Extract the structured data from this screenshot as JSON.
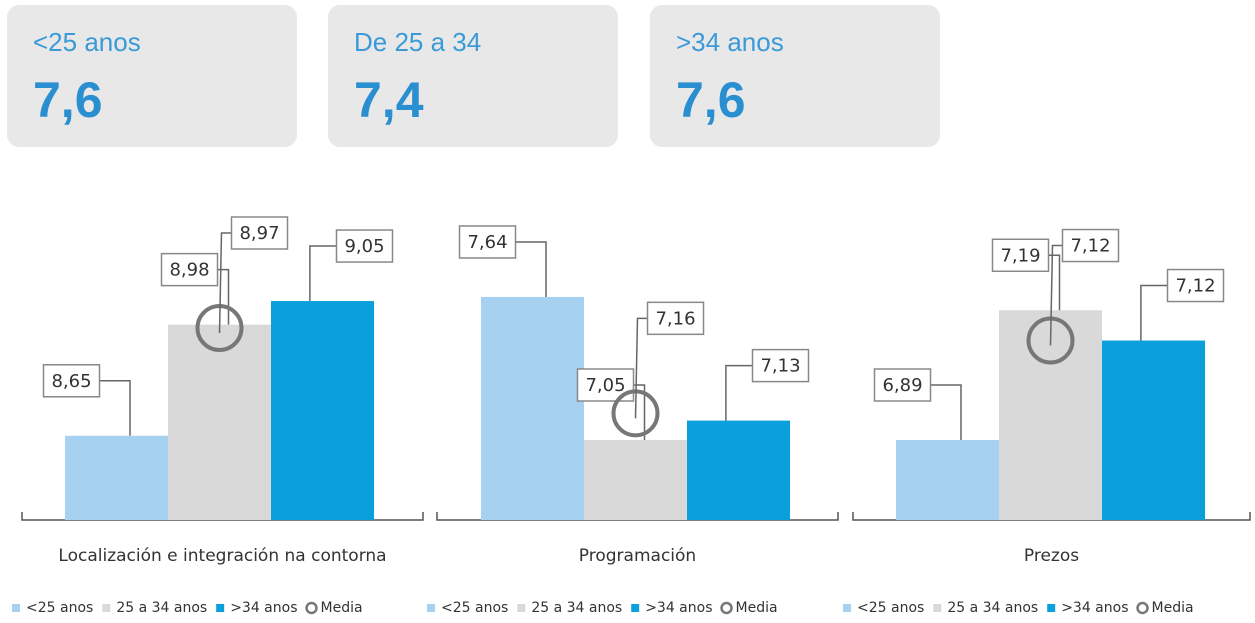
{
  "cards": [
    {
      "label": "<25 anos",
      "value": "7,6"
    },
    {
      "label": "De 25 a 34",
      "value": "7,4"
    },
    {
      "label": ">34 anos",
      "value": "7,6"
    }
  ],
  "chart_data": [
    {
      "type": "bar",
      "categories": [
        "Localización e integración na contorna"
      ],
      "ylim": [
        8.4,
        9.35
      ],
      "series": [
        {
          "name": "<25 anos",
          "color": "#a6d1f0",
          "values": [
            8.65
          ],
          "value_labels": [
            "8,65"
          ]
        },
        {
          "name": "25 a 34 anos",
          "color": "#d9d9d9",
          "values": [
            8.98
          ],
          "value_labels": [
            "8,98"
          ]
        },
        {
          "name": ">34 anos",
          "color": "#0aa0dc",
          "values": [
            9.05
          ],
          "value_labels": [
            "9,05"
          ]
        },
        {
          "name": "Media",
          "color": "#777777",
          "marker": "circle",
          "values": [
            8.97
          ],
          "value_labels": [
            "8,97"
          ]
        }
      ]
    },
    {
      "type": "bar",
      "categories": [
        "Programación"
      ],
      "ylim": [
        6.72,
        8.04
      ],
      "series": [
        {
          "name": "<25 anos",
          "color": "#a6d1f0",
          "values": [
            7.64
          ],
          "value_labels": [
            "7,64"
          ]
        },
        {
          "name": "25 a 34 anos",
          "color": "#d9d9d9",
          "values": [
            7.05
          ],
          "value_labels": [
            "7,05"
          ]
        },
        {
          "name": ">34 anos",
          "color": "#0aa0dc",
          "values": [
            7.13
          ],
          "value_labels": [
            "7,13"
          ]
        },
        {
          "name": "Media",
          "color": "#777777",
          "marker": "circle",
          "values": [
            7.16
          ],
          "value_labels": [
            "7,16"
          ]
        }
      ]
    },
    {
      "type": "bar",
      "categories": [
        "Prezos"
      ],
      "ylim": [
        6.705,
        7.445
      ],
      "series": [
        {
          "name": "<25 anos",
          "color": "#a6d1f0",
          "values": [
            6.89
          ],
          "value_labels": [
            "6,89"
          ]
        },
        {
          "name": "25 a 34 anos",
          "color": "#d9d9d9",
          "values": [
            7.19
          ],
          "value_labels": [
            "7,19"
          ]
        },
        {
          "name": ">34 anos",
          "color": "#0aa0dc",
          "values": [
            7.12
          ],
          "value_labels": [
            "7,12"
          ]
        },
        {
          "name": "Media",
          "color": "#777777",
          "marker": "circle",
          "values": [
            7.12
          ],
          "value_labels": [
            "7,12"
          ]
        }
      ]
    }
  ]
}
